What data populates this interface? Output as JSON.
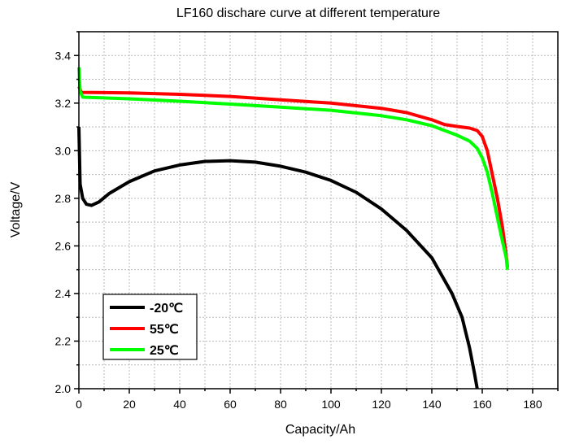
{
  "chart_data": {
    "type": "line",
    "title": "LF160 dischare curve at different temperature",
    "xlabel": "Capacity/Ah",
    "ylabel": "Voltage/V",
    "xlim": [
      0,
      190
    ],
    "ylim": [
      2.0,
      3.5
    ],
    "xticks": [
      0,
      20,
      40,
      60,
      80,
      100,
      120,
      140,
      160,
      180
    ],
    "yticks": [
      2.0,
      2.2,
      2.4,
      2.6,
      2.8,
      3.0,
      3.2,
      3.4
    ],
    "grid": true,
    "legend_position": "bottom-left",
    "series": [
      {
        "name": "-20℃",
        "color": "#000000",
        "points": [
          [
            0,
            3.1
          ],
          [
            0.5,
            2.86
          ],
          [
            1.5,
            2.8
          ],
          [
            3,
            2.775
          ],
          [
            5,
            2.77
          ],
          [
            8,
            2.785
          ],
          [
            12,
            2.82
          ],
          [
            20,
            2.87
          ],
          [
            30,
            2.915
          ],
          [
            40,
            2.94
          ],
          [
            50,
            2.955
          ],
          [
            60,
            2.958
          ],
          [
            70,
            2.952
          ],
          [
            80,
            2.935
          ],
          [
            90,
            2.91
          ],
          [
            100,
            2.875
          ],
          [
            110,
            2.825
          ],
          [
            120,
            2.755
          ],
          [
            130,
            2.665
          ],
          [
            140,
            2.55
          ],
          [
            148,
            2.4
          ],
          [
            152,
            2.3
          ],
          [
            155,
            2.17
          ],
          [
            157,
            2.06
          ],
          [
            158,
            2.0
          ]
        ]
      },
      {
        "name": "55℃",
        "color": "#ff0000",
        "points": [
          [
            0,
            3.27
          ],
          [
            1,
            3.245
          ],
          [
            20,
            3.243
          ],
          [
            40,
            3.237
          ],
          [
            60,
            3.228
          ],
          [
            80,
            3.214
          ],
          [
            100,
            3.2
          ],
          [
            120,
            3.178
          ],
          [
            130,
            3.16
          ],
          [
            140,
            3.13
          ],
          [
            145,
            3.11
          ],
          [
            150,
            3.102
          ],
          [
            155,
            3.095
          ],
          [
            158,
            3.085
          ],
          [
            160,
            3.06
          ],
          [
            162,
            3.0
          ],
          [
            164,
            2.9
          ],
          [
            166,
            2.8
          ],
          [
            168,
            2.68
          ],
          [
            169.5,
            2.56
          ],
          [
            170,
            2.51
          ]
        ]
      },
      {
        "name": "25℃",
        "color": "#00ff00",
        "points": [
          [
            0,
            3.35
          ],
          [
            0.5,
            3.25
          ],
          [
            1.5,
            3.225
          ],
          [
            20,
            3.218
          ],
          [
            40,
            3.208
          ],
          [
            60,
            3.196
          ],
          [
            80,
            3.183
          ],
          [
            100,
            3.17
          ],
          [
            120,
            3.147
          ],
          [
            130,
            3.13
          ],
          [
            140,
            3.105
          ],
          [
            150,
            3.065
          ],
          [
            155,
            3.04
          ],
          [
            158,
            3.01
          ],
          [
            160,
            2.97
          ],
          [
            162,
            2.91
          ],
          [
            164,
            2.82
          ],
          [
            166,
            2.72
          ],
          [
            168,
            2.62
          ],
          [
            169.5,
            2.55
          ],
          [
            170,
            2.5
          ]
        ]
      }
    ]
  }
}
